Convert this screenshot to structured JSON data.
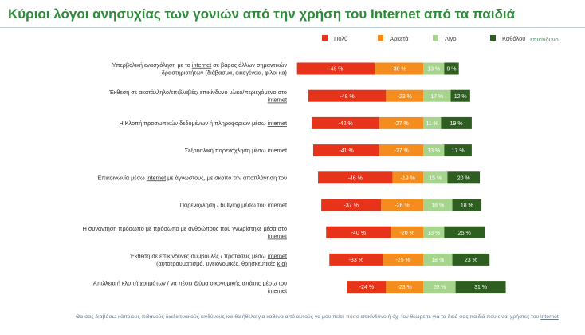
{
  "title": "Κύριοι λόγοι ανησυχίας των γονιών από την χρήση του Internet από τα παιδιά",
  "legend": {
    "items": [
      {
        "name": "Πολύ",
        "color": "#e63319"
      },
      {
        "name": "Αρκετά",
        "color": "#f58c1e"
      },
      {
        "name": "Λίγο",
        "color": "#a6d48c"
      },
      {
        "name": "Καθόλου",
        "color": "#2e5e20"
      }
    ],
    "tail": "..επικίνδυνο"
  },
  "chart_data": {
    "type": "bar",
    "subtype": "diverging-stacked-horizontal",
    "title": "Κύριοι λόγοι ανησυχίας των γονιών από την χρήση του Internet από τα παιδιά",
    "unit": "%",
    "categories": [
      {
        "text": "Υπερβολική ενασχόληση με το internet σε βάρος άλλων σημαντικών δραστηριοτήτων (διάβασμα, οικογένεια, φίλοι κα)",
        "lines": [
          [
            {
              "t": "Υπερβολική ενασχόληση με το "
            },
            {
              "t": "internet",
              "u": true
            },
            {
              "t": " σε βάρος άλλων σημαντικών"
            }
          ],
          [
            {
              "t": "δραστηριοτήτων (διάβασμα, οικογένεια, φίλοι κα)"
            }
          ]
        ]
      },
      {
        "text": "Έκθεση σε ακατάλληλο/επιβλαβές/ επικίνδυνο υλικό/περιεχόμενο στο internet",
        "lines": [
          [
            {
              "t": "Έκθεση σε ακατάλληλο/επιβλαβές/ επικίνδυνο υλικό/περιεχόμενο στο"
            }
          ],
          [
            {
              "t": "internet",
              "u": true
            }
          ]
        ]
      },
      {
        "text": "Η Κλοπή προσωπικών δεδομένων ή πληροφοριών μέσω internet",
        "lines": [
          [
            {
              "t": "Η Κλοπή προσωπικών δεδομένων ή πληροφοριών μέσω "
            },
            {
              "t": "internet",
              "u": true
            }
          ]
        ]
      },
      {
        "text": "Σεξουαλική παρενόχληση μέσω internet",
        "lines": [
          [
            {
              "t": "Σεξουαλική παρενόχληση μέσω internet"
            }
          ]
        ]
      },
      {
        "text": "Επικοινωνία μέσω internet με άγνωστους, με σκοπό την αποπλάνηση του",
        "lines": [
          [
            {
              "t": "Επικοινωνία μέσω "
            },
            {
              "t": "internet",
              "u": true
            },
            {
              "t": " με άγνωστους, με σκοπό την αποπλάνηση του"
            }
          ]
        ]
      },
      {
        "text": "Παρενόχληση / bullying μέσω του internet",
        "lines": [
          [
            {
              "t": "Παρενόχληση / bullying μέσω του internet"
            }
          ]
        ]
      },
      {
        "text": "Η συνάντηση πρόσωπο με πρόσωπο με ανθρώπους που γνωρίστηκε μέσα στο internet",
        "lines": [
          [
            {
              "t": "Η συνάντηση πρόσωπο με πρόσωπο με ανθρώπους που γνωρίστηκε μέσα στο"
            }
          ],
          [
            {
              "t": "internet",
              "u": true
            }
          ]
        ]
      },
      {
        "text": "Έκθεση σε επικίνδυνες συμβουλές / προτάσεις μέσω internet (αυτοτραυματισμό, υγειονομικές, θρησκευτικές κ.α)",
        "lines": [
          [
            {
              "t": "Έκθεση σε επικίνδυνες συμβουλές / προτάσεις μέσω "
            },
            {
              "t": "internet",
              "u": true
            }
          ],
          [
            {
              "t": "(αυτοτραυματισμό, υγειονομικές, θρησκευτικές "
            },
            {
              "t": "κ.α)",
              "u": true
            }
          ]
        ]
      },
      {
        "text": "Απώλεια ή κλοπή χρημάτων / να πέσει Θύμα οικονομικής απάτης μέσω του internet",
        "lines": [
          [
            {
              "t": "Απώλεια ή κλοπή χρημάτων / να πέσει Θύμα οικονομικής απάτης μέσω του"
            }
          ],
          [
            {
              "t": "internet",
              "u": true
            }
          ]
        ]
      }
    ],
    "series": [
      {
        "name": "Πολύ",
        "color": "#e63319",
        "side": "left",
        "values": [
          48,
          48,
          42,
          41,
          46,
          37,
          40,
          33,
          24
        ],
        "labels": [
          "-48 %",
          "-48 %",
          "-42 %",
          "-41 %",
          "-46 %",
          "-37 %",
          "-40 %",
          "-33 %",
          "-24 %"
        ]
      },
      {
        "name": "Αρκετά",
        "color": "#f58c1e",
        "side": "left",
        "values": [
          30,
          23,
          27,
          27,
          19,
          26,
          20,
          25,
          23
        ],
        "labels": [
          "-30 %",
          "-23 %",
          "-27 %",
          "-27 %",
          "-19 %",
          "-26 %",
          "-20 %",
          "-25 %",
          "-23 %"
        ]
      },
      {
        "name": "Λίγο",
        "color": "#a6d48c",
        "side": "right",
        "values": [
          13,
          17,
          11,
          13,
          15,
          18,
          13,
          18,
          20
        ],
        "labels": [
          "13 %",
          "17 %",
          "11 %",
          "13 %",
          "15 %",
          "18 %",
          "13 %",
          "18 %",
          "20 %"
        ]
      },
      {
        "name": "Καθόλου",
        "color": "#2e5e20",
        "side": "right",
        "values": [
          9,
          12,
          19,
          17,
          20,
          18,
          25,
          23,
          31
        ],
        "labels": [
          "9 %",
          "12 %",
          "19 %",
          "17 %",
          "20 %",
          "18 %",
          "25 %",
          "23 %",
          "31 %"
        ]
      }
    ]
  },
  "footnote": {
    "parts": [
      {
        "t": "Θα σας διαβάσω κάποιους πιθανούς διαδικτυακούς κινδύνους και θα ήθελα για καθένα από αυτούς να μου πείτε πόσο επικίνδυνο ή όχι τον θεωρείτε για τα δικά σας παιδιά  που είναι χρήστες του "
      },
      {
        "t": "internet",
        "u": true
      },
      {
        "t": "."
      }
    ]
  }
}
